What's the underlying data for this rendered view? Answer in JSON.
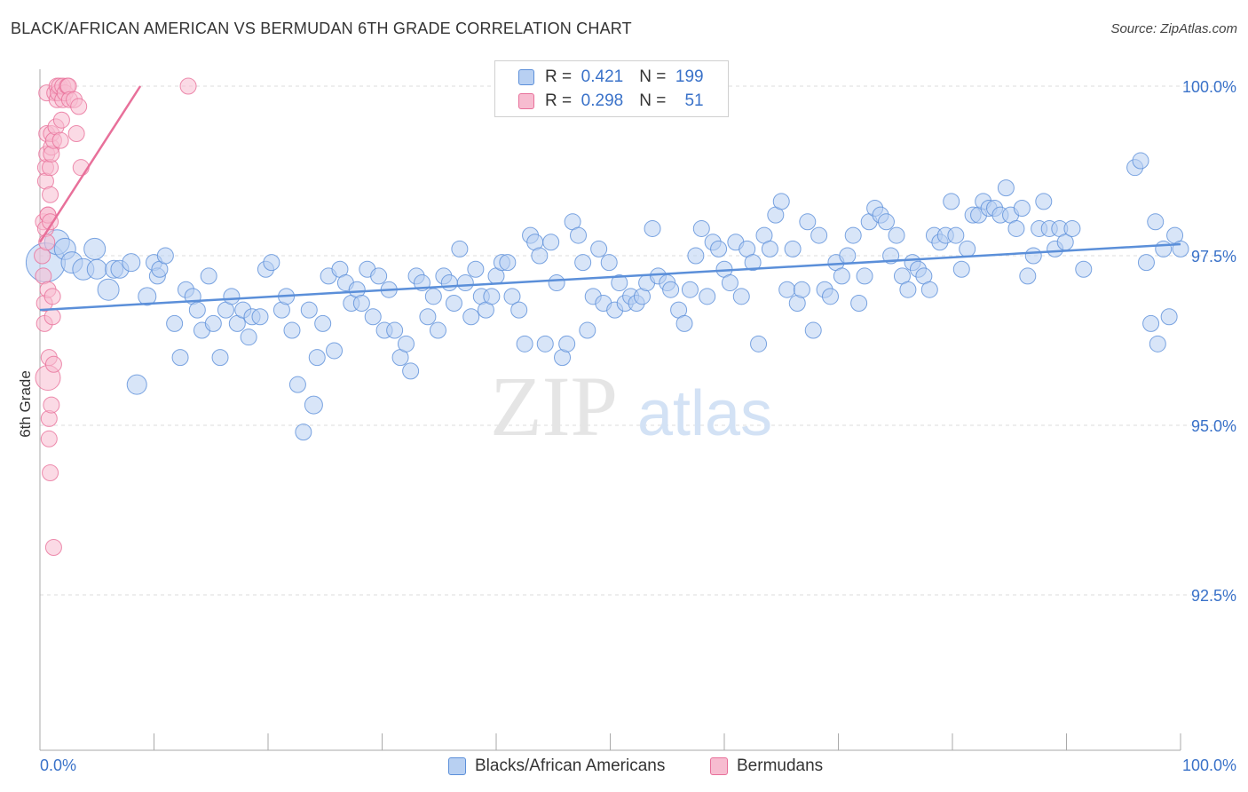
{
  "title": "BLACK/AFRICAN AMERICAN VS BERMUDAN 6TH GRADE CORRELATION CHART",
  "source": "Source: ZipAtlas.com",
  "watermark": {
    "zip": "ZIP",
    "atlas": "atlas"
  },
  "legend": {
    "rows": [
      {
        "r_label": "R =",
        "r_value": "0.421",
        "n_label": "N =",
        "n_value": "199"
      },
      {
        "r_label": "R =",
        "r_value": "0.298",
        "n_label": "N =",
        "n_value": "51"
      }
    ]
  },
  "colors": {
    "blue": "#5b8fd9",
    "blue_fill": "#b8d0f2",
    "pink": "#e8709a",
    "pink_fill": "#f7bcd0",
    "axis_label": "#3a72c9"
  },
  "chart_data": {
    "type": "scatter",
    "ylabel": "6th Grade",
    "xlim": [
      0,
      100
    ],
    "ylim": [
      90.0,
      100.2
    ],
    "x_tick_labels": [
      "0.0%",
      "100.0%"
    ],
    "y_ticks": [
      {
        "value": 100.0,
        "label": "100.0%"
      },
      {
        "value": 97.5,
        "label": "97.5%"
      },
      {
        "value": 95.0,
        "label": "95.0%"
      },
      {
        "value": 92.5,
        "label": "92.5%"
      }
    ],
    "grid": true,
    "series": [
      {
        "name": "Blacks/African Americans",
        "color": "#5b8fd9",
        "trend": {
          "x": [
            0,
            100
          ],
          "y": [
            96.7,
            97.67
          ]
        },
        "points": [
          [
            0.5,
            97.4,
            22
          ],
          [
            1.5,
            97.7,
            14
          ],
          [
            2.2,
            97.6,
            12
          ],
          [
            2.8,
            97.4,
            12
          ],
          [
            3.8,
            97.3,
            12
          ],
          [
            4.8,
            97.6,
            12
          ],
          [
            5,
            97.3,
            11
          ],
          [
            6,
            97.0,
            12
          ],
          [
            6.5,
            97.3,
            10
          ],
          [
            7,
            97.3,
            10
          ],
          [
            8,
            97.4,
            10
          ],
          [
            8.5,
            95.6,
            11
          ],
          [
            9.4,
            96.9,
            10
          ],
          [
            10,
            97.4,
            9
          ],
          [
            10.3,
            97.2,
            9
          ],
          [
            10.5,
            97.3,
            9
          ],
          [
            11,
            97.5,
            9
          ],
          [
            11.8,
            96.5,
            9
          ],
          [
            12.3,
            96.0,
            9
          ],
          [
            12.8,
            97.0,
            9
          ],
          [
            13.4,
            96.9,
            9
          ],
          [
            13.8,
            96.7,
            9
          ],
          [
            14.2,
            96.4,
            9
          ],
          [
            14.8,
            97.2,
            9
          ],
          [
            15.2,
            96.5,
            9
          ],
          [
            15.8,
            96.0,
            9
          ],
          [
            16.3,
            96.7,
            9
          ],
          [
            16.8,
            96.9,
            9
          ],
          [
            17.3,
            96.5,
            9
          ],
          [
            17.8,
            96.7,
            9
          ],
          [
            18.3,
            96.3,
            9
          ],
          [
            18.6,
            96.6,
            9
          ],
          [
            19.3,
            96.6,
            9
          ],
          [
            19.8,
            97.3,
            9
          ],
          [
            20.3,
            97.4,
            9
          ],
          [
            21.2,
            96.7,
            9
          ],
          [
            21.6,
            96.9,
            9
          ],
          [
            22.1,
            96.4,
            9
          ],
          [
            22.6,
            95.6,
            9
          ],
          [
            23.1,
            94.9,
            9
          ],
          [
            23.6,
            96.7,
            9
          ],
          [
            24.0,
            95.3,
            10
          ],
          [
            24.3,
            96.0,
            9
          ],
          [
            24.8,
            96.5,
            9
          ],
          [
            25.3,
            97.2,
            9
          ],
          [
            25.8,
            96.1,
            9
          ],
          [
            26.3,
            97.3,
            9
          ],
          [
            26.8,
            97.1,
            9
          ],
          [
            27.3,
            96.8,
            9
          ],
          [
            27.8,
            97.0,
            9
          ],
          [
            28.2,
            96.8,
            9
          ],
          [
            28.7,
            97.3,
            9
          ],
          [
            29.2,
            96.6,
            9
          ],
          [
            29.7,
            97.2,
            9
          ],
          [
            30.2,
            96.4,
            9
          ],
          [
            30.6,
            97.0,
            9
          ],
          [
            31.1,
            96.4,
            9
          ],
          [
            31.6,
            96.0,
            9
          ],
          [
            32.1,
            96.2,
            9
          ],
          [
            32.5,
            95.8,
            9
          ],
          [
            33.0,
            97.2,
            9
          ],
          [
            33.5,
            97.1,
            9
          ],
          [
            34.0,
            96.6,
            9
          ],
          [
            34.5,
            96.9,
            9
          ],
          [
            34.9,
            96.4,
            9
          ],
          [
            35.4,
            97.2,
            9
          ],
          [
            35.9,
            97.1,
            9
          ],
          [
            36.3,
            96.8,
            9
          ],
          [
            36.8,
            97.6,
            9
          ],
          [
            37.3,
            97.1,
            9
          ],
          [
            37.8,
            96.6,
            9
          ],
          [
            38.2,
            97.3,
            9
          ],
          [
            38.7,
            96.9,
            9
          ],
          [
            39.1,
            96.7,
            9
          ],
          [
            39.6,
            96.9,
            9
          ],
          [
            40.0,
            97.2,
            9
          ],
          [
            40.5,
            97.4,
            9
          ],
          [
            41.0,
            97.4,
            9
          ],
          [
            41.4,
            96.9,
            9
          ],
          [
            42.0,
            96.7,
            9
          ],
          [
            42.5,
            96.2,
            9
          ],
          [
            43.0,
            97.8,
            9
          ],
          [
            43.4,
            97.7,
            9
          ],
          [
            43.8,
            97.5,
            9
          ],
          [
            44.3,
            96.2,
            9
          ],
          [
            44.8,
            97.7,
            9
          ],
          [
            45.3,
            97.1,
            9
          ],
          [
            45.8,
            96.0,
            9
          ],
          [
            46.2,
            96.2,
            9
          ],
          [
            46.7,
            98.0,
            9
          ],
          [
            47.2,
            97.8,
            9
          ],
          [
            47.6,
            97.4,
            9
          ],
          [
            48.0,
            96.4,
            9
          ],
          [
            48.5,
            96.9,
            9
          ],
          [
            49.0,
            97.6,
            9
          ],
          [
            49.4,
            96.8,
            9
          ],
          [
            49.9,
            97.4,
            9
          ],
          [
            50.4,
            96.7,
            9
          ],
          [
            50.8,
            97.1,
            9
          ],
          [
            51.3,
            96.8,
            9
          ],
          [
            51.8,
            96.9,
            9
          ],
          [
            52.3,
            96.8,
            9
          ],
          [
            52.8,
            96.9,
            9
          ],
          [
            53.2,
            97.1,
            9
          ],
          [
            53.7,
            97.9,
            9
          ],
          [
            54.2,
            97.2,
            9
          ],
          [
            55.0,
            97.1,
            9
          ],
          [
            55.3,
            97.0,
            9
          ],
          [
            56.0,
            96.7,
            9
          ],
          [
            56.5,
            96.5,
            9
          ],
          [
            57.0,
            97.0,
            9
          ],
          [
            57.5,
            97.5,
            9
          ],
          [
            58.0,
            97.9,
            9
          ],
          [
            58.5,
            96.9,
            9
          ],
          [
            59.0,
            97.7,
            9
          ],
          [
            59.5,
            97.6,
            9
          ],
          [
            60.0,
            97.3,
            9
          ],
          [
            60.5,
            97.1,
            9
          ],
          [
            61.0,
            97.7,
            9
          ],
          [
            61.5,
            96.9,
            9
          ],
          [
            62.0,
            97.6,
            9
          ],
          [
            62.5,
            97.4,
            9
          ],
          [
            63.0,
            96.2,
            9
          ],
          [
            63.5,
            97.8,
            9
          ],
          [
            64.0,
            97.6,
            9
          ],
          [
            64.5,
            98.1,
            9
          ],
          [
            65.0,
            98.3,
            9
          ],
          [
            65.5,
            97.0,
            9
          ],
          [
            66.0,
            97.6,
            9
          ],
          [
            66.4,
            96.8,
            9
          ],
          [
            66.8,
            97.0,
            9
          ],
          [
            67.3,
            98.0,
            9
          ],
          [
            67.8,
            96.4,
            9
          ],
          [
            68.3,
            97.8,
            9
          ],
          [
            68.8,
            97.0,
            9
          ],
          [
            69.3,
            96.9,
            9
          ],
          [
            69.8,
            97.4,
            9
          ],
          [
            70.3,
            97.2,
            9
          ],
          [
            70.8,
            97.5,
            9
          ],
          [
            71.3,
            97.8,
            9
          ],
          [
            71.8,
            96.8,
            9
          ],
          [
            72.3,
            97.2,
            9
          ],
          [
            72.7,
            98.0,
            9
          ],
          [
            73.2,
            98.2,
            9
          ],
          [
            73.7,
            98.1,
            9
          ],
          [
            74.2,
            98.0,
            9
          ],
          [
            74.6,
            97.5,
            9
          ],
          [
            75.1,
            97.8,
            9
          ],
          [
            75.6,
            97.2,
            9
          ],
          [
            76.1,
            97.0,
            9
          ],
          [
            76.5,
            97.4,
            9
          ],
          [
            77.0,
            97.3,
            9
          ],
          [
            77.5,
            97.2,
            9
          ],
          [
            78.0,
            97.0,
            9
          ],
          [
            78.4,
            97.8,
            9
          ],
          [
            78.9,
            97.7,
            9
          ],
          [
            79.4,
            97.8,
            9
          ],
          [
            79.9,
            98.3,
            9
          ],
          [
            80.3,
            97.8,
            9
          ],
          [
            80.8,
            97.3,
            9
          ],
          [
            81.3,
            97.6,
            9
          ],
          [
            81.8,
            98.1,
            9
          ],
          [
            82.3,
            98.1,
            9
          ],
          [
            82.7,
            98.3,
            9
          ],
          [
            83.2,
            98.2,
            9
          ],
          [
            83.7,
            98.2,
            9
          ],
          [
            84.2,
            98.1,
            9
          ],
          [
            84.7,
            98.5,
            9
          ],
          [
            85.1,
            98.1,
            9
          ],
          [
            85.6,
            97.9,
            9
          ],
          [
            86.1,
            98.2,
            9
          ],
          [
            86.6,
            97.2,
            9
          ],
          [
            87.1,
            97.5,
            9
          ],
          [
            87.6,
            97.9,
            9
          ],
          [
            88.0,
            98.3,
            9
          ],
          [
            88.5,
            97.9,
            9
          ],
          [
            89.0,
            97.6,
            9
          ],
          [
            89.4,
            97.9,
            9
          ],
          [
            89.9,
            97.7,
            9
          ],
          [
            90.5,
            97.9,
            9
          ],
          [
            91.5,
            97.3,
            9
          ],
          [
            96.0,
            98.8,
            9
          ],
          [
            96.5,
            98.9,
            9
          ],
          [
            97.0,
            97.4,
            9
          ],
          [
            97.4,
            96.5,
            9
          ],
          [
            98.0,
            96.2,
            9
          ],
          [
            98.5,
            97.6,
            9
          ],
          [
            99.0,
            96.6,
            9
          ],
          [
            99.5,
            97.8,
            9
          ],
          [
            100.0,
            97.6,
            9
          ],
          [
            97.8,
            98.0,
            9
          ]
        ]
      },
      {
        "name": "Bermudans",
        "color": "#e8709a",
        "trend": {
          "x": [
            0,
            8.8
          ],
          "y": [
            97.7,
            100.0
          ]
        },
        "points": [
          [
            0.2,
            97.5,
            9
          ],
          [
            0.3,
            97.2,
            9
          ],
          [
            0.3,
            98.0,
            9
          ],
          [
            0.4,
            96.5,
            9
          ],
          [
            0.4,
            96.8,
            9
          ],
          [
            0.5,
            97.9,
            9
          ],
          [
            0.5,
            98.8,
            9
          ],
          [
            0.5,
            98.6,
            9
          ],
          [
            0.6,
            99.0,
            9
          ],
          [
            0.6,
            99.3,
            9
          ],
          [
            0.6,
            99.9,
            9
          ],
          [
            0.7,
            98.1,
            9
          ],
          [
            0.7,
            98.1,
            9
          ],
          [
            0.7,
            97.0,
            9
          ],
          [
            0.7,
            95.7,
            14
          ],
          [
            0.8,
            96.0,
            9
          ],
          [
            0.8,
            95.1,
            9
          ],
          [
            0.8,
            94.8,
            9
          ],
          [
            0.9,
            94.3,
            9
          ],
          [
            0.9,
            98.4,
            9
          ],
          [
            0.9,
            98.8,
            9
          ],
          [
            1.0,
            99.1,
            9
          ],
          [
            1.0,
            99.3,
            9
          ],
          [
            1.0,
            99.0,
            9
          ],
          [
            1.1,
            96.6,
            9
          ],
          [
            1.1,
            96.9,
            9
          ],
          [
            1.2,
            95.9,
            9
          ],
          [
            1.2,
            99.2,
            9
          ],
          [
            1.3,
            99.9,
            9
          ],
          [
            1.4,
            99.4,
            9
          ],
          [
            1.5,
            99.8,
            9
          ],
          [
            1.5,
            100.0,
            9
          ],
          [
            1.6,
            99.9,
            9
          ],
          [
            1.7,
            100.0,
            9
          ],
          [
            1.8,
            99.2,
            9
          ],
          [
            1.9,
            99.5,
            9
          ],
          [
            2.0,
            99.8,
            9
          ],
          [
            2.0,
            100.0,
            9
          ],
          [
            2.2,
            99.9,
            9
          ],
          [
            2.4,
            100.0,
            9
          ],
          [
            2.5,
            100.0,
            9
          ],
          [
            2.6,
            99.8,
            9
          ],
          [
            3.0,
            99.8,
            9
          ],
          [
            3.2,
            99.3,
            9
          ],
          [
            3.4,
            99.7,
            9
          ],
          [
            3.6,
            98.8,
            9
          ],
          [
            1.2,
            93.2,
            9
          ],
          [
            0.6,
            97.7,
            9
          ],
          [
            0.9,
            98.0,
            9
          ],
          [
            1.0,
            95.3,
            9
          ],
          [
            13.0,
            100.0,
            9
          ]
        ]
      }
    ]
  }
}
